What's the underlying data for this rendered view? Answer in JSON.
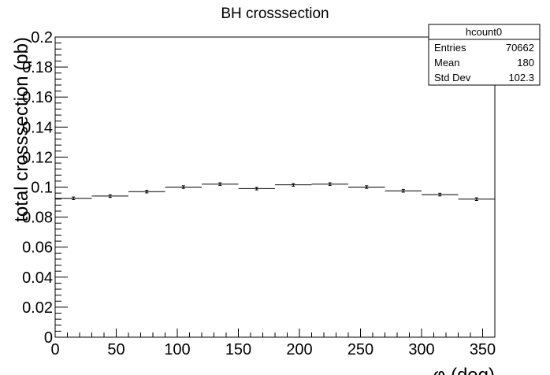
{
  "chart_data": {
    "type": "histogram",
    "title": "BH crosssection",
    "xlabel": "φ (deg)",
    "ylabel": "total crosssection (pb)",
    "xlim": [
      0,
      360
    ],
    "ylim": [
      0,
      0.2
    ],
    "x_ticks": [
      "0",
      "50",
      "100",
      "150",
      "200",
      "250",
      "300",
      "350"
    ],
    "y_ticks": [
      "0",
      "0.02",
      "0.04",
      "0.06",
      "0.08",
      "0.1",
      "0.12",
      "0.14",
      "0.16",
      "0.18",
      "0.2"
    ],
    "bin_edges": [
      0,
      30,
      60,
      90,
      120,
      150,
      180,
      210,
      240,
      270,
      300,
      330,
      360
    ],
    "values": [
      0.0925,
      0.094,
      0.097,
      0.1,
      0.102,
      0.099,
      0.1015,
      0.102,
      0.1,
      0.0975,
      0.095,
      0.092
    ],
    "errors": [
      0.0009,
      0.0009,
      0.0009,
      0.0009,
      0.0009,
      0.0009,
      0.0009,
      0.0009,
      0.0009,
      0.0009,
      0.0009,
      0.0009
    ],
    "grid": false,
    "stats_box": {
      "name": "hcount0",
      "rows": [
        {
          "label": "Entries",
          "value": "70662"
        },
        {
          "label": "Mean",
          "value": "180"
        },
        {
          "label": "Std Dev",
          "value": "102.3"
        }
      ],
      "placement": "top-right"
    }
  }
}
